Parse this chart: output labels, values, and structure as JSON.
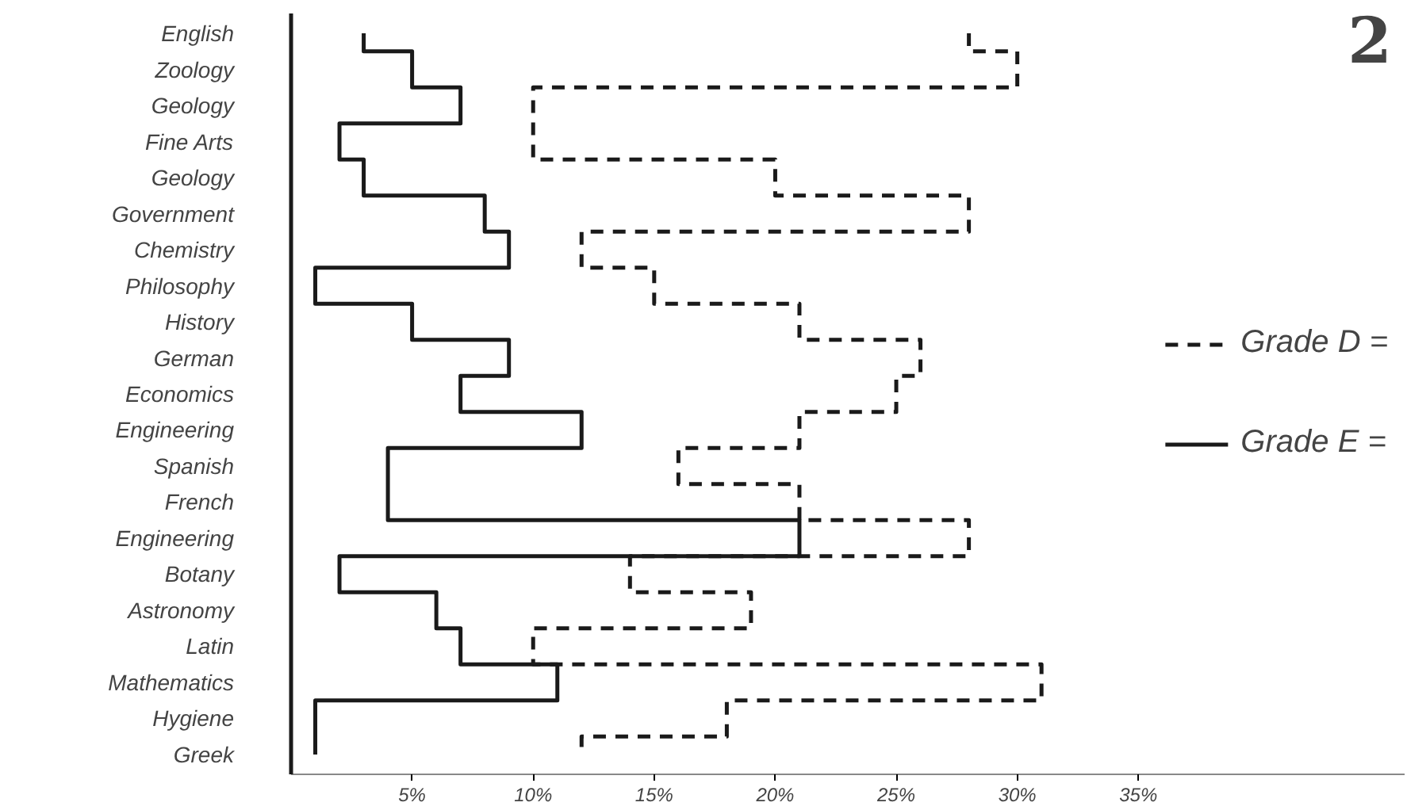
{
  "chart_data": {
    "type": "step",
    "orientation": "horizontal",
    "categories": [
      "English",
      "Zoology",
      "Geology",
      "Fine Arts",
      "Geology",
      "Government",
      "Chemistry",
      "Philosophy",
      "History",
      "German",
      "Economics",
      "Engineering",
      "Spanish",
      "French",
      "Engineering",
      "Botany",
      "Astronomy",
      "Latin",
      "Mathematics",
      "Hygiene",
      "Greek"
    ],
    "series": [
      {
        "name": "Grade D =",
        "color": "#1a1a1a",
        "line_style": "dashed",
        "values": [
          28,
          30,
          10,
          10,
          20,
          28,
          12,
          15,
          21,
          26,
          25,
          21,
          16,
          21,
          28,
          14,
          19,
          10,
          31,
          18,
          12
        ]
      },
      {
        "name": "Grade E =",
        "color": "#1a1a1a",
        "line_style": "solid",
        "values": [
          3,
          5,
          7,
          2,
          3,
          8,
          9,
          1,
          5,
          9,
          7,
          12,
          4,
          4,
          21,
          2,
          6,
          7,
          11,
          1,
          1
        ]
      }
    ],
    "xlim": [
      0,
      46
    ],
    "xticks": [
      {
        "value": 5,
        "label": "5%"
      },
      {
        "value": 10,
        "label": "10%"
      },
      {
        "value": 15,
        "label": "15%"
      },
      {
        "value": 20,
        "label": "20%"
      },
      {
        "value": 25,
        "label": "25%"
      },
      {
        "value": 30,
        "label": "30%"
      },
      {
        "value": 35,
        "label": "35%"
      }
    ],
    "annotations": [
      "2"
    ],
    "legend": "right",
    "grid": false
  }
}
